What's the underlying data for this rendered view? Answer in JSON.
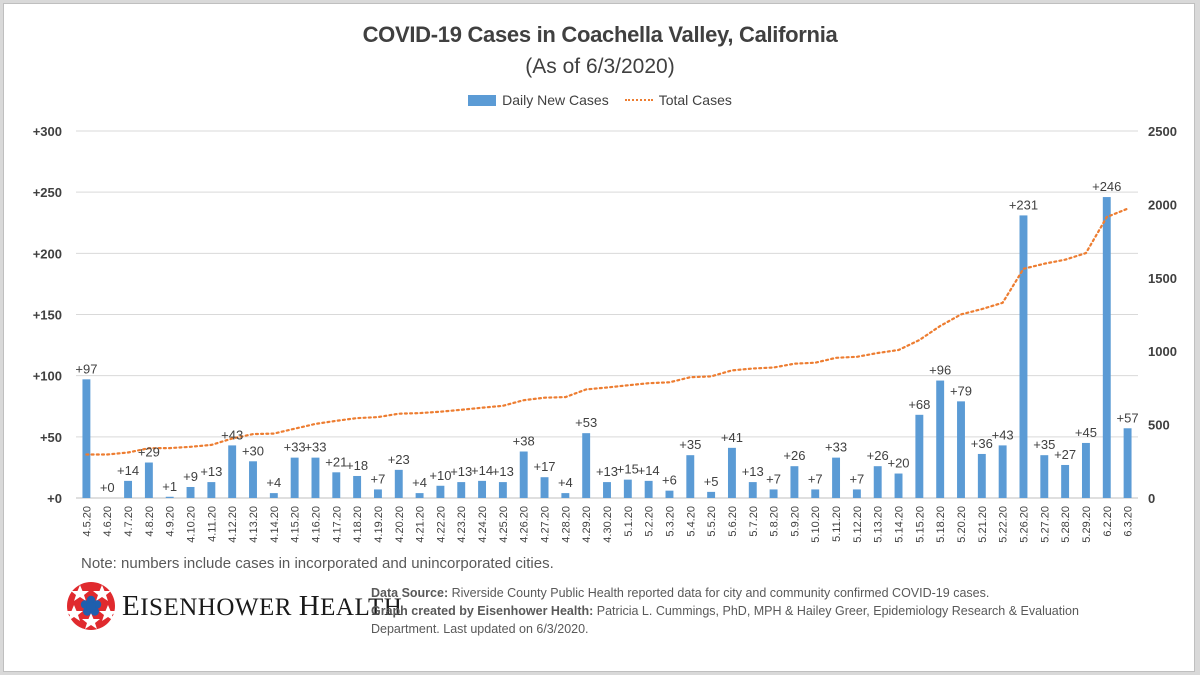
{
  "chart_data": {
    "type": "bar",
    "title": "COVID-19 Cases in Coachella Valley, California",
    "subtitle": "(As of 6/3/2020)",
    "xlabel": "",
    "ylabel": "",
    "ylabel_right": "",
    "ylim": [
      0,
      300
    ],
    "ylim_right": [
      0,
      2500
    ],
    "yticks_left": [
      "+0",
      "+50",
      "+100",
      "+150",
      "+200",
      "+250",
      "+300"
    ],
    "yticks_right": [
      "0",
      "500",
      "1000",
      "1500",
      "2000",
      "2500"
    ],
    "grid": true,
    "legend_position": "top-center",
    "categories": [
      "4.5.20",
      "4.6.20",
      "4.7.20",
      "4.8.20",
      "4.9.20",
      "4.10.20",
      "4.11.20",
      "4.12.20",
      "4.13.20",
      "4.14.20",
      "4.15.20",
      "4.16.20",
      "4.17.20",
      "4.18.20",
      "4.19.20",
      "4.20.20",
      "4.21.20",
      "4.22.20",
      "4.23.20",
      "4.24.20",
      "4.25.20",
      "4.26.20",
      "4.27.20",
      "4.28.20",
      "4.29.20",
      "4.30.20",
      "5.1.20",
      "5.2.20",
      "5.3.20",
      "5.4.20",
      "5.5.20",
      "5.6.20",
      "5.7.20",
      "5.8.20",
      "5.9.20",
      "5.10.20",
      "5.11.20",
      "5.12.20",
      "5.13.20",
      "5.14.20",
      "5.15.20",
      "5.18.20",
      "5.20.20",
      "5.21.20",
      "5.22.20",
      "5.26.20",
      "5.27.20",
      "5.28.20",
      "5.29.20",
      "6.2.20",
      "6.3.20"
    ],
    "series": [
      {
        "name": "Daily New Cases",
        "type": "bar",
        "axis": "left",
        "color": "#5b9bd5",
        "values": [
          97,
          0,
          14,
          29,
          1,
          9,
          13,
          43,
          30,
          4,
          33,
          33,
          21,
          18,
          7,
          23,
          4,
          10,
          13,
          14,
          13,
          38,
          17,
          4,
          53,
          13,
          15,
          14,
          6,
          35,
          5,
          41,
          13,
          7,
          26,
          7,
          33,
          7,
          26,
          20,
          68,
          96,
          79,
          36,
          43,
          231,
          35,
          27,
          45,
          246,
          57
        ],
        "labels": [
          "+97",
          "+0",
          "+14",
          "+29",
          "+1",
          "+9",
          "+13",
          "+43",
          "+30",
          "+4",
          "+33",
          "+33",
          "+21",
          "+18",
          "+7",
          "+23",
          "+4",
          "+10",
          "+13",
          "+14",
          "+13",
          "+38",
          "+17",
          "+4",
          "+53",
          "+13",
          "+15",
          "+14",
          "+6",
          "+35",
          "+5",
          "+41",
          "+13",
          "+7",
          "+26",
          "+7",
          "+33",
          "+7",
          "+26",
          "+20",
          "+68",
          "+96",
          "+79",
          "+36",
          "+43",
          "+231",
          "+35",
          "+27",
          "+45",
          "+246",
          "+57"
        ]
      },
      {
        "name": "Total Cases",
        "type": "line",
        "style": "dotted",
        "axis": "right",
        "color": "#ed7d31",
        "values": [
          296,
          296,
          310,
          339,
          340,
          349,
          362,
          405,
          435,
          439,
          472,
          505,
          526,
          544,
          551,
          574,
          578,
          588,
          601,
          615,
          628,
          666,
          683,
          687,
          740,
          753,
          768,
          782,
          788,
          823,
          828,
          869,
          882,
          889,
          915,
          922,
          955,
          962,
          988,
          1008,
          1076,
          1172,
          1251,
          1287,
          1330,
          1561,
          1596,
          1623,
          1668,
          1914,
          1971
        ]
      }
    ]
  },
  "footer": {
    "note": "Note: numbers include cases in incorporated and unincorporated cities.",
    "brand_first": "E",
    "brand_first_rest": "ISENHOWER ",
    "brand_second": "H",
    "brand_second_rest": "EALTH",
    "source_label": "Data Source:",
    "source_text": " Riverside County Public Health reported data for city and community confirmed COVID-19 cases.",
    "credit_label": "Graph created by Eisenhower Health:",
    "credit_text": " Patricia L. Cummings, PhD, MPH & Hailey Greer, Epidemiology Research & Evaluation Department. Last updated on 6/3/2020."
  }
}
